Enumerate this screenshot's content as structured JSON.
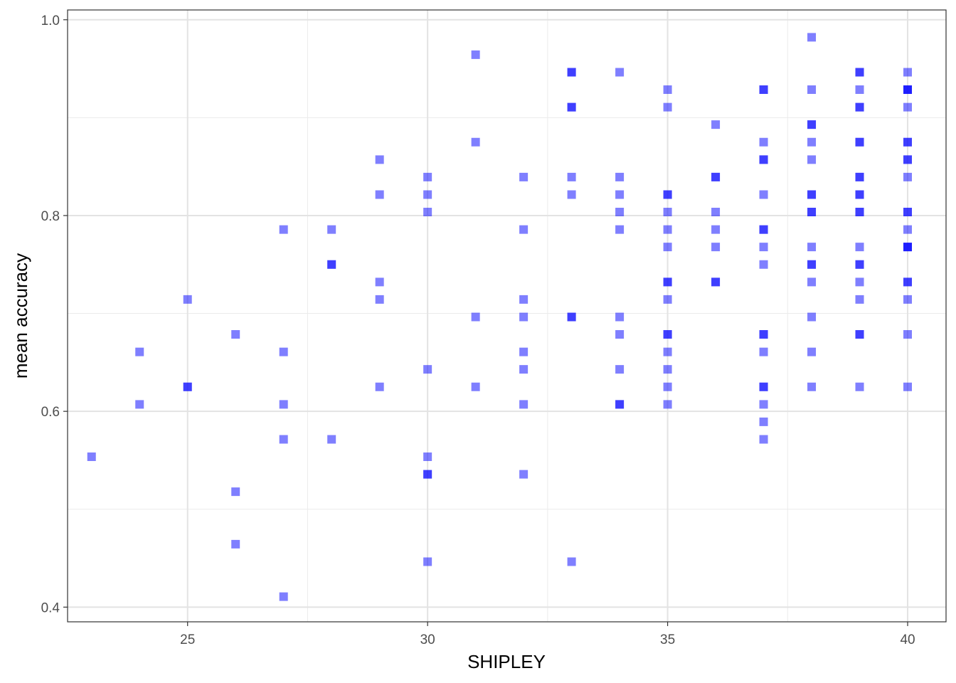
{
  "chart_data": {
    "type": "scatter",
    "title": "",
    "xlabel": "SHIPLEY",
    "ylabel": "mean accuracy",
    "xlim": [
      22.5,
      40.8
    ],
    "ylim": [
      0.385,
      1.01
    ],
    "x_ticks": [
      25,
      30,
      35,
      40
    ],
    "x_tick_labels": [
      "25",
      "30",
      "35",
      "40"
    ],
    "y_ticks": [
      0.4,
      0.6,
      0.8,
      1.0
    ],
    "y_tick_labels": [
      "0.4",
      "0.6",
      "0.8",
      "1.0"
    ],
    "x_minor_ticks": [
      22.5,
      27.5,
      32.5,
      37.5
    ],
    "y_minor_ticks": [
      0.5,
      0.7,
      0.9
    ],
    "grid": true,
    "legend": "none",
    "marker": "square",
    "point_color": "#0000ff",
    "point_alpha": 0.5,
    "series": [
      {
        "points": [
          [
            23,
            0.5536
          ],
          [
            24,
            0.6607
          ],
          [
            24,
            0.6071
          ],
          [
            25,
            0.7143
          ],
          [
            25,
            0.625
          ],
          [
            25,
            0.625
          ],
          [
            26,
            0.6786
          ],
          [
            26,
            0.5179
          ],
          [
            26,
            0.4643
          ],
          [
            27,
            0.7857
          ],
          [
            27,
            0.6607
          ],
          [
            27,
            0.6071
          ],
          [
            27,
            0.5714
          ],
          [
            27,
            0.4107
          ],
          [
            28,
            0.7857
          ],
          [
            28,
            0.75
          ],
          [
            28,
            0.75
          ],
          [
            28,
            0.5714
          ],
          [
            29,
            0.8571
          ],
          [
            29,
            0.8214
          ],
          [
            29,
            0.7321
          ],
          [
            29,
            0.7143
          ],
          [
            29,
            0.625
          ],
          [
            30,
            0.8393
          ],
          [
            30,
            0.8214
          ],
          [
            30,
            0.8036
          ],
          [
            30,
            0.6429
          ],
          [
            30,
            0.5536
          ],
          [
            30,
            0.5357
          ],
          [
            30,
            0.5357
          ],
          [
            30,
            0.4464
          ],
          [
            31,
            0.9643
          ],
          [
            31,
            0.875
          ],
          [
            31,
            0.6964
          ],
          [
            31,
            0.625
          ],
          [
            32,
            0.8393
          ],
          [
            32,
            0.7857
          ],
          [
            32,
            0.7143
          ],
          [
            32,
            0.6964
          ],
          [
            32,
            0.6607
          ],
          [
            32,
            0.6429
          ],
          [
            32,
            0.6071
          ],
          [
            32,
            0.5357
          ],
          [
            33,
            0.9464
          ],
          [
            33,
            0.9464
          ],
          [
            33,
            0.9107
          ],
          [
            33,
            0.9107
          ],
          [
            33,
            0.8393
          ],
          [
            33,
            0.8214
          ],
          [
            33,
            0.6964
          ],
          [
            33,
            0.6964
          ],
          [
            33,
            0.4464
          ],
          [
            34,
            0.9464
          ],
          [
            34,
            0.8393
          ],
          [
            34,
            0.8214
          ],
          [
            34,
            0.8036
          ],
          [
            34,
            0.7857
          ],
          [
            34,
            0.6964
          ],
          [
            34,
            0.6786
          ],
          [
            34,
            0.6429
          ],
          [
            34,
            0.6071
          ],
          [
            34,
            0.6071
          ],
          [
            35,
            0.9286
          ],
          [
            35,
            0.9107
          ],
          [
            35,
            0.8214
          ],
          [
            35,
            0.8214
          ],
          [
            35,
            0.8036
          ],
          [
            35,
            0.7857
          ],
          [
            35,
            0.7679
          ],
          [
            35,
            0.7321
          ],
          [
            35,
            0.7321
          ],
          [
            35,
            0.7143
          ],
          [
            35,
            0.6786
          ],
          [
            35,
            0.6786
          ],
          [
            35,
            0.6607
          ],
          [
            35,
            0.6429
          ],
          [
            35,
            0.625
          ],
          [
            35,
            0.6071
          ],
          [
            36,
            0.8929
          ],
          [
            36,
            0.8393
          ],
          [
            36,
            0.8393
          ],
          [
            36,
            0.8036
          ],
          [
            36,
            0.7857
          ],
          [
            36,
            0.7679
          ],
          [
            36,
            0.7321
          ],
          [
            36,
            0.7321
          ],
          [
            37,
            0.9286
          ],
          [
            37,
            0.9286
          ],
          [
            37,
            0.875
          ],
          [
            37,
            0.8571
          ],
          [
            37,
            0.8571
          ],
          [
            37,
            0.8214
          ],
          [
            37,
            0.7857
          ],
          [
            37,
            0.7857
          ],
          [
            37,
            0.7679
          ],
          [
            37,
            0.75
          ],
          [
            37,
            0.6786
          ],
          [
            37,
            0.6786
          ],
          [
            37,
            0.6607
          ],
          [
            37,
            0.625
          ],
          [
            37,
            0.625
          ],
          [
            37,
            0.6071
          ],
          [
            37,
            0.5893
          ],
          [
            37,
            0.5714
          ],
          [
            38,
            0.9821
          ],
          [
            38,
            0.9286
          ],
          [
            38,
            0.8929
          ],
          [
            38,
            0.8929
          ],
          [
            38,
            0.875
          ],
          [
            38,
            0.8571
          ],
          [
            38,
            0.8214
          ],
          [
            38,
            0.8214
          ],
          [
            38,
            0.8036
          ],
          [
            38,
            0.8036
          ],
          [
            38,
            0.7679
          ],
          [
            38,
            0.75
          ],
          [
            38,
            0.75
          ],
          [
            38,
            0.7321
          ],
          [
            38,
            0.6964
          ],
          [
            38,
            0.6607
          ],
          [
            38,
            0.625
          ],
          [
            39,
            0.9464
          ],
          [
            39,
            0.9464
          ],
          [
            39,
            0.9286
          ],
          [
            39,
            0.9107
          ],
          [
            39,
            0.9107
          ],
          [
            39,
            0.875
          ],
          [
            39,
            0.875
          ],
          [
            39,
            0.8393
          ],
          [
            39,
            0.8393
          ],
          [
            39,
            0.8214
          ],
          [
            39,
            0.8214
          ],
          [
            39,
            0.8036
          ],
          [
            39,
            0.8036
          ],
          [
            39,
            0.7679
          ],
          [
            39,
            0.75
          ],
          [
            39,
            0.75
          ],
          [
            39,
            0.7321
          ],
          [
            39,
            0.7143
          ],
          [
            39,
            0.6786
          ],
          [
            39,
            0.6786
          ],
          [
            39,
            0.625
          ],
          [
            40,
            0.9464
          ],
          [
            40,
            0.9286
          ],
          [
            40,
            0.9286
          ],
          [
            40,
            0.9286
          ],
          [
            40,
            0.9107
          ],
          [
            40,
            0.875
          ],
          [
            40,
            0.875
          ],
          [
            40,
            0.8571
          ],
          [
            40,
            0.8571
          ],
          [
            40,
            0.8393
          ],
          [
            40,
            0.8036
          ],
          [
            40,
            0.8036
          ],
          [
            40,
            0.7857
          ],
          [
            40,
            0.7679
          ],
          [
            40,
            0.7679
          ],
          [
            40,
            0.7679
          ],
          [
            40,
            0.7321
          ],
          [
            40,
            0.7321
          ],
          [
            40,
            0.7143
          ],
          [
            40,
            0.6786
          ],
          [
            40,
            0.625
          ]
        ]
      }
    ]
  }
}
